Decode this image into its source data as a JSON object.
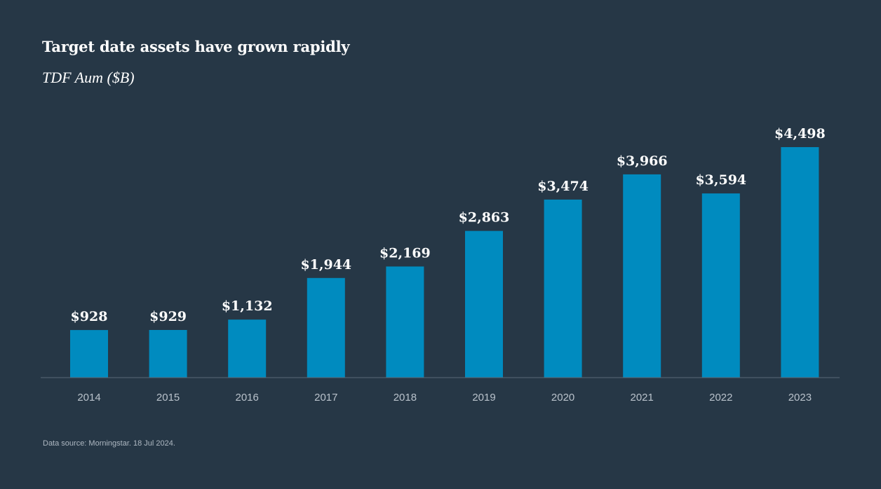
{
  "chart_data": {
    "type": "bar",
    "title": "Target date assets have grown rapidly",
    "subtitle": "TDF Aum ($B)",
    "categories": [
      "2014",
      "2015",
      "2016",
      "2017",
      "2018",
      "2019",
      "2020",
      "2021",
      "2022",
      "2023"
    ],
    "values": [
      928,
      929,
      1132,
      1944,
      2169,
      2863,
      3474,
      3966,
      3594,
      4498
    ],
    "value_labels": [
      "$928",
      "$929",
      "$1,132",
      "$1,944",
      "$2,169",
      "$2,863",
      "$3,474",
      "$3,966",
      "$3,594",
      "$4,498"
    ],
    "xlabel": "",
    "ylabel": "",
    "ylim": [
      0,
      4498
    ],
    "grid": false,
    "bar_color": "#008bbf",
    "axis_color": "#5a6a78"
  },
  "footer": {
    "source": "Data source: Morningstar. 18 Jul 2024."
  }
}
